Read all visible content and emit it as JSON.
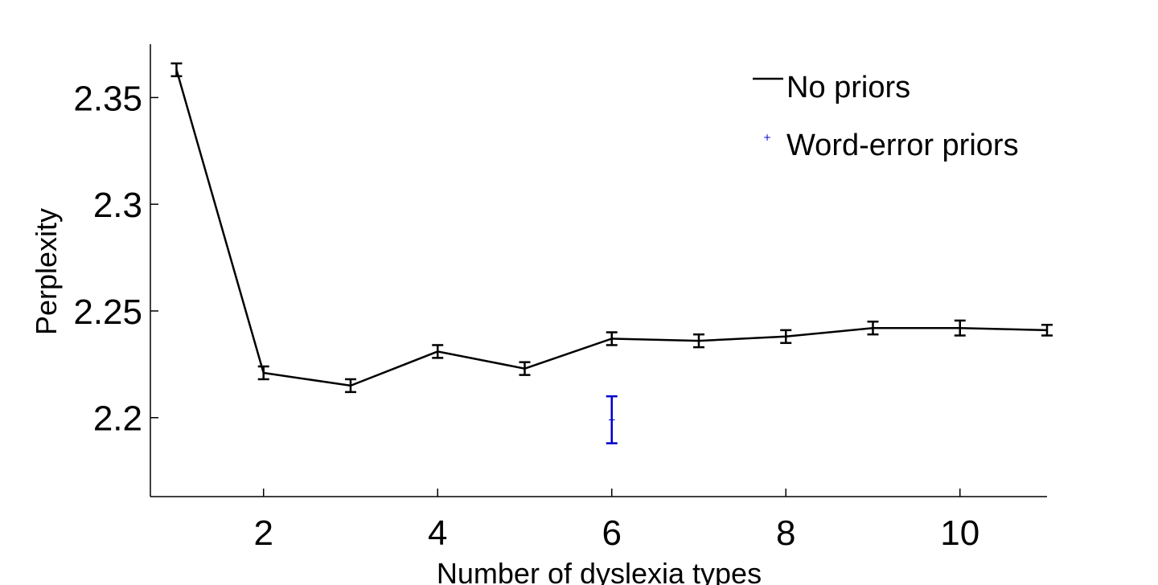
{
  "chart_data": {
    "type": "line",
    "title": "",
    "xlabel": "Number of dyslexia types",
    "ylabel": "Perplexity",
    "xlim": [
      0.7,
      11.0
    ],
    "ylim": [
      2.163,
      2.375
    ],
    "x_ticks": [
      2,
      4,
      6,
      8,
      10
    ],
    "y_ticks": [
      2.2,
      2.25,
      2.3,
      2.35
    ],
    "x_tick_labels": [
      "2",
      "4",
      "6",
      "8",
      "10"
    ],
    "y_tick_labels": [
      "2.2",
      "2.25",
      "2.3",
      "2.35"
    ],
    "grid": false,
    "legend": "top-right",
    "series": [
      {
        "name": "No priors",
        "color": "#000000",
        "marker": "none",
        "x": [
          1,
          2,
          3,
          4,
          5,
          6,
          7,
          8,
          9,
          10,
          11
        ],
        "y": [
          2.363,
          2.221,
          2.215,
          2.231,
          2.223,
          2.237,
          2.236,
          2.238,
          2.242,
          2.242,
          2.241
        ],
        "err": [
          0.003,
          0.003,
          0.003,
          0.003,
          0.003,
          0.003,
          0.003,
          0.003,
          0.003,
          0.0035,
          0.0025
        ]
      },
      {
        "name": "Word-error priors",
        "color": "#0000cc",
        "marker": "point",
        "x": [
          6
        ],
        "y": [
          2.199
        ],
        "err": [
          0.011
        ]
      }
    ]
  }
}
